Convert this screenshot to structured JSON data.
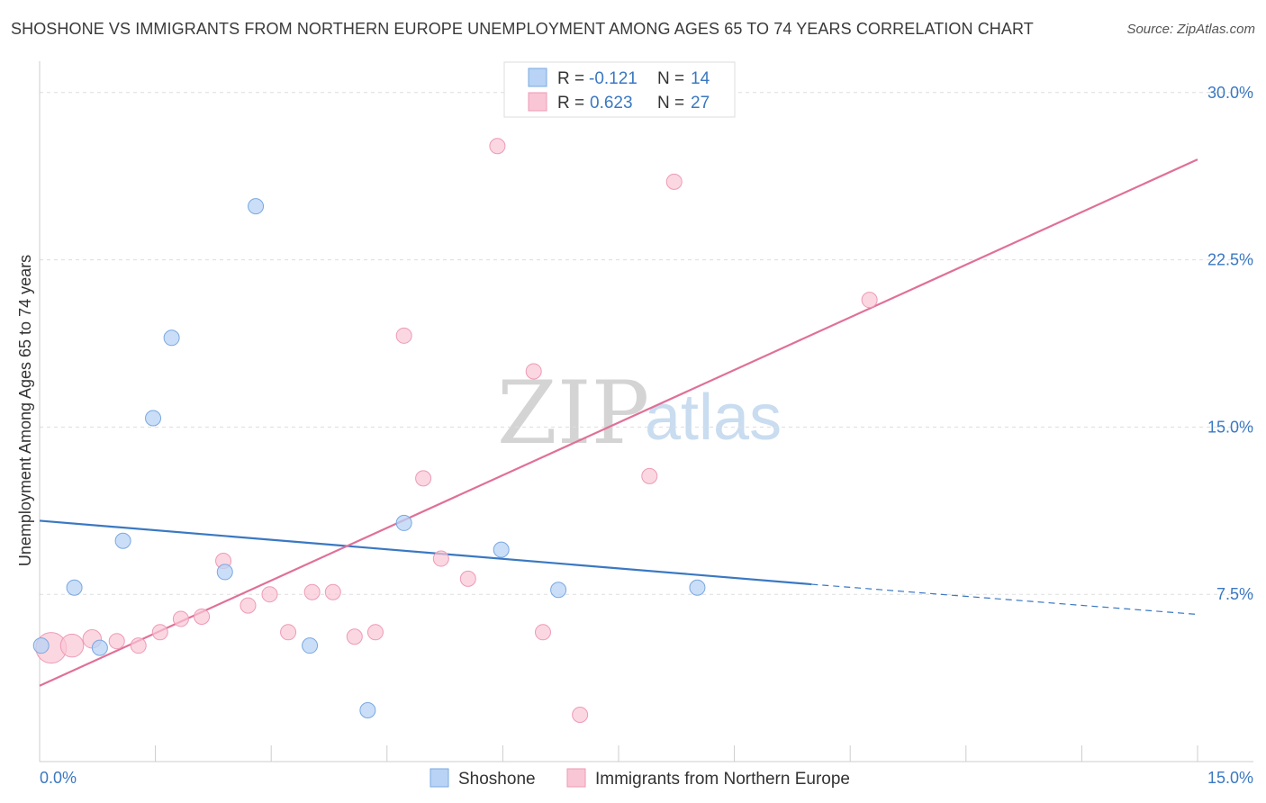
{
  "title": "SHOSHONE VS IMMIGRANTS FROM NORTHERN EUROPE UNEMPLOYMENT AMONG AGES 65 TO 74 YEARS CORRELATION CHART",
  "source": "Source: ZipAtlas.com",
  "watermark": {
    "zip": "ZIP",
    "atlas": "atlas"
  },
  "legend": [
    {
      "r_label": "R = ",
      "r_value": "-0.121",
      "n_label": "N = ",
      "n_value": "14"
    },
    {
      "r_label": "R = ",
      "r_value": "0.623",
      "n_label": "N = ",
      "n_value": "27"
    }
  ],
  "colors": {
    "shoshone_fill": "#b8d3f5",
    "shoshone_stroke": "#7aa8e0",
    "shoshone_line": "#3a78c2",
    "immig_fill": "#f9c6d5",
    "immig_stroke": "#ee9ab5",
    "immig_line": "#e07098",
    "grid": "#dddddd",
    "tick_label": "#3a78c2"
  },
  "chart_data": {
    "type": "scatter",
    "title": "SHOSHONE VS IMMIGRANTS FROM NORTHERN EUROPE UNEMPLOYMENT AMONG AGES 65 TO 74 YEARS CORRELATION CHART",
    "xlabel": "",
    "ylabel": "Unemployment Among Ages 65 to 74 years",
    "xlim": [
      0,
      15
    ],
    "ylim": [
      0,
      31
    ],
    "x_tick_labels": [
      "0.0%",
      "15.0%"
    ],
    "y_ticks": [
      7.5,
      15.0,
      22.5,
      30.0
    ],
    "y_tick_labels": [
      "7.5%",
      "15.0%",
      "22.5%",
      "30.0%"
    ],
    "grid": true,
    "legend_position": "top-center",
    "series": [
      {
        "name": "Shoshone",
        "r": -0.121,
        "n": 14,
        "points": [
          {
            "x": 0.02,
            "y": 5.2,
            "size": 1.0
          },
          {
            "x": 0.45,
            "y": 7.8,
            "size": 1.0
          },
          {
            "x": 0.78,
            "y": 5.1,
            "size": 1.0
          },
          {
            "x": 1.08,
            "y": 9.9,
            "size": 1.0
          },
          {
            "x": 1.47,
            "y": 15.4,
            "size": 1.0
          },
          {
            "x": 1.71,
            "y": 19.0,
            "size": 1.0
          },
          {
            "x": 2.4,
            "y": 8.5,
            "size": 1.0
          },
          {
            "x": 2.8,
            "y": 24.9,
            "size": 1.0
          },
          {
            "x": 3.5,
            "y": 5.2,
            "size": 1.0
          },
          {
            "x": 4.25,
            "y": 2.3,
            "size": 1.0
          },
          {
            "x": 4.72,
            "y": 10.7,
            "size": 1.0
          },
          {
            "x": 5.98,
            "y": 9.5,
            "size": 1.0
          },
          {
            "x": 6.72,
            "y": 7.7,
            "size": 1.0
          },
          {
            "x": 8.52,
            "y": 7.8,
            "size": 1.0
          }
        ],
        "trend": {
          "x0": 0,
          "y0": 10.8,
          "x1": 10.0,
          "y1": 7.95,
          "dashed_to_x": 15,
          "dashed_to_y": 6.6
        }
      },
      {
        "name": "Immigrants from Northern Europe",
        "r": 0.623,
        "n": 27,
        "points": [
          {
            "x": 0.15,
            "y": 5.1,
            "size": 2.0
          },
          {
            "x": 0.42,
            "y": 5.2,
            "size": 1.5
          },
          {
            "x": 0.68,
            "y": 5.5,
            "size": 1.2
          },
          {
            "x": 1.0,
            "y": 5.4,
            "size": 1.0
          },
          {
            "x": 1.28,
            "y": 5.2,
            "size": 1.0
          },
          {
            "x": 1.56,
            "y": 5.8,
            "size": 1.0
          },
          {
            "x": 1.83,
            "y": 6.4,
            "size": 1.0
          },
          {
            "x": 2.1,
            "y": 6.5,
            "size": 1.0
          },
          {
            "x": 2.38,
            "y": 9.0,
            "size": 1.0
          },
          {
            "x": 2.7,
            "y": 7.0,
            "size": 1.0
          },
          {
            "x": 2.98,
            "y": 7.5,
            "size": 1.0
          },
          {
            "x": 3.22,
            "y": 5.8,
            "size": 1.0
          },
          {
            "x": 3.53,
            "y": 7.6,
            "size": 1.0
          },
          {
            "x": 3.8,
            "y": 7.6,
            "size": 1.0
          },
          {
            "x": 4.08,
            "y": 5.6,
            "size": 1.0
          },
          {
            "x": 4.35,
            "y": 5.8,
            "size": 1.0
          },
          {
            "x": 4.72,
            "y": 19.1,
            "size": 1.0
          },
          {
            "x": 4.97,
            "y": 12.7,
            "size": 1.0
          },
          {
            "x": 5.2,
            "y": 9.1,
            "size": 1.0
          },
          {
            "x": 5.55,
            "y": 8.2,
            "size": 1.0
          },
          {
            "x": 5.93,
            "y": 27.6,
            "size": 1.0
          },
          {
            "x": 6.4,
            "y": 17.5,
            "size": 1.0
          },
          {
            "x": 6.52,
            "y": 5.8,
            "size": 1.0
          },
          {
            "x": 7.0,
            "y": 2.1,
            "size": 1.0
          },
          {
            "x": 7.9,
            "y": 12.8,
            "size": 1.0
          },
          {
            "x": 8.22,
            "y": 26.0,
            "size": 1.0
          },
          {
            "x": 10.75,
            "y": 20.7,
            "size": 1.0
          }
        ],
        "trend": {
          "x0": 0,
          "y0": 3.4,
          "x1": 15,
          "y1": 27.0
        }
      }
    ]
  }
}
